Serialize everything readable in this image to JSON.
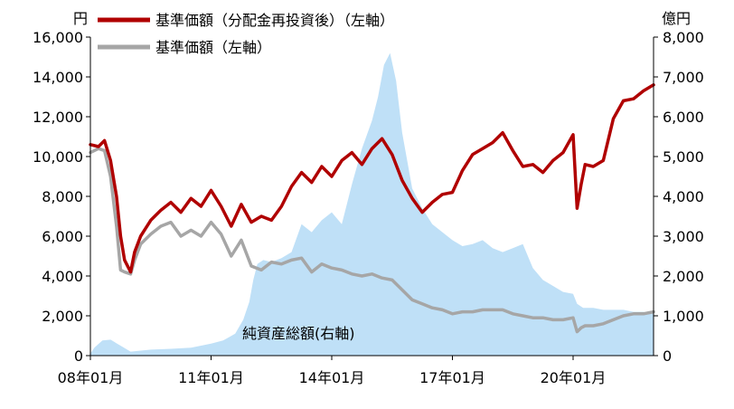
{
  "chart_data": {
    "type": "line",
    "left_axis": {
      "unit": "円",
      "range": [
        0,
        16000
      ],
      "ticks": [
        "0",
        "2,000",
        "4,000",
        "6,000",
        "8,000",
        "10,000",
        "12,000",
        "14,000",
        "16,000"
      ],
      "tick_values": [
        0,
        2000,
        4000,
        6000,
        8000,
        10000,
        12000,
        14000,
        16000
      ]
    },
    "right_axis": {
      "unit": "億円",
      "range": [
        0,
        8000
      ],
      "ticks": [
        "0",
        "1,000",
        "2,000",
        "3,000",
        "4,000",
        "5,000",
        "6,000",
        "7,000",
        "8,000"
      ],
      "tick_values": [
        0,
        1000,
        2000,
        3000,
        4000,
        5000,
        6000,
        7000,
        8000
      ]
    },
    "x_axis": {
      "range": [
        2008.0,
        2022.0
      ],
      "ticks": [
        "08年01月",
        "11年01月",
        "14年01月",
        "17年01月",
        "20年01月"
      ],
      "tick_values": [
        2008.0,
        2011.0,
        2014.0,
        2017.0,
        2020.0
      ]
    },
    "series": [
      {
        "name": "基準価額（分配金再投資後）（左軸）",
        "axis": "left",
        "style": "line",
        "color": "#b00000",
        "x": [
          2008.0,
          2008.2,
          2008.35,
          2008.5,
          2008.65,
          2008.75,
          2008.85,
          2009.0,
          2009.1,
          2009.25,
          2009.5,
          2009.75,
          2010.0,
          2010.25,
          2010.5,
          2010.75,
          2011.0,
          2011.25,
          2011.5,
          2011.75,
          2012.0,
          2012.25,
          2012.5,
          2012.75,
          2013.0,
          2013.25,
          2013.5,
          2013.75,
          2014.0,
          2014.25,
          2014.5,
          2014.75,
          2015.0,
          2015.25,
          2015.5,
          2015.75,
          2016.0,
          2016.25,
          2016.5,
          2016.75,
          2017.0,
          2017.25,
          2017.5,
          2017.75,
          2018.0,
          2018.25,
          2018.5,
          2018.75,
          2019.0,
          2019.25,
          2019.5,
          2019.75,
          2020.0,
          2020.1,
          2020.2,
          2020.3,
          2020.5,
          2020.75,
          2021.0,
          2021.25,
          2021.5,
          2021.75,
          2022.0
        ],
        "y": [
          10600,
          10500,
          10800,
          9800,
          8000,
          6000,
          4800,
          4200,
          5200,
          6000,
          6800,
          7300,
          7700,
          7200,
          7900,
          7500,
          8300,
          7500,
          6500,
          7600,
          6700,
          7000,
          6800,
          7500,
          8500,
          9200,
          8700,
          9500,
          9000,
          9800,
          10200,
          9600,
          10400,
          10900,
          10100,
          8800,
          7900,
          7200,
          7700,
          8100,
          8200,
          9300,
          10100,
          10400,
          10700,
          11200,
          10300,
          9500,
          9600,
          9200,
          9800,
          10200,
          11100,
          7400,
          8600,
          9600,
          9500,
          9800,
          11900,
          12800,
          12900,
          13300,
          13600
        ]
      },
      {
        "name": "基準価額（左軸）",
        "axis": "left",
        "style": "line",
        "color": "#a6a6a6",
        "x": [
          2008.0,
          2008.2,
          2008.35,
          2008.5,
          2008.65,
          2008.75,
          2008.85,
          2009.0,
          2009.1,
          2009.25,
          2009.5,
          2009.75,
          2010.0,
          2010.25,
          2010.5,
          2010.75,
          2011.0,
          2011.25,
          2011.5,
          2011.75,
          2012.0,
          2012.25,
          2012.5,
          2012.75,
          2013.0,
          2013.25,
          2013.5,
          2013.75,
          2014.0,
          2014.25,
          2014.5,
          2014.75,
          2015.0,
          2015.25,
          2015.5,
          2015.75,
          2016.0,
          2016.25,
          2016.5,
          2016.75,
          2017.0,
          2017.25,
          2017.5,
          2017.75,
          2018.0,
          2018.25,
          2018.5,
          2018.75,
          2019.0,
          2019.25,
          2019.5,
          2019.75,
          2020.0,
          2020.1,
          2020.2,
          2020.3,
          2020.5,
          2020.75,
          2021.0,
          2021.25,
          2021.5,
          2021.75,
          2022.0
        ],
        "y": [
          10200,
          10400,
          10300,
          9000,
          6500,
          4300,
          4200,
          4100,
          4800,
          5600,
          6100,
          6500,
          6700,
          6000,
          6300,
          6000,
          6700,
          6100,
          5000,
          5800,
          4500,
          4300,
          4700,
          4600,
          4800,
          4900,
          4200,
          4600,
          4400,
          4300,
          4100,
          4000,
          4100,
          3900,
          3800,
          3300,
          2800,
          2600,
          2400,
          2300,
          2100,
          2200,
          2200,
          2300,
          2300,
          2300,
          2100,
          2000,
          1900,
          1900,
          1800,
          1800,
          1900,
          1200,
          1400,
          1500,
          1500,
          1600,
          1800,
          2000,
          2100,
          2100,
          2200
        ]
      },
      {
        "name": "純資産総額(右軸)",
        "axis": "right",
        "style": "area",
        "color": "#bfe0f7",
        "x": [
          2008.0,
          2008.1,
          2008.3,
          2008.5,
          2008.7,
          2009.0,
          2009.5,
          2010.0,
          2010.5,
          2011.0,
          2011.3,
          2011.6,
          2011.8,
          2011.95,
          2012.05,
          2012.15,
          2012.3,
          2012.5,
          2012.75,
          2013.0,
          2013.25,
          2013.5,
          2013.75,
          2014.0,
          2014.25,
          2014.5,
          2014.75,
          2015.0,
          2015.15,
          2015.3,
          2015.45,
          2015.6,
          2015.75,
          2016.0,
          2016.25,
          2016.5,
          2016.75,
          2017.0,
          2017.25,
          2017.5,
          2017.75,
          2018.0,
          2018.25,
          2018.5,
          2018.75,
          2019.0,
          2019.25,
          2019.5,
          2019.75,
          2020.0,
          2020.1,
          2020.25,
          2020.5,
          2020.75,
          2021.0,
          2021.25,
          2021.5,
          2021.75,
          2022.0
        ],
        "y": [
          50,
          200,
          380,
          400,
          280,
          100,
          150,
          170,
          200,
          300,
          380,
          550,
          900,
          1350,
          1900,
          2300,
          2400,
          2350,
          2450,
          2600,
          3300,
          3100,
          3400,
          3600,
          3300,
          4300,
          5200,
          5900,
          6500,
          7300,
          7600,
          6900,
          5600,
          4200,
          3700,
          3300,
          3100,
          2900,
          2750,
          2800,
          2900,
          2700,
          2600,
          2700,
          2800,
          2200,
          1900,
          1750,
          1600,
          1550,
          1300,
          1200,
          1200,
          1150,
          1150,
          1150,
          1100,
          1100,
          1050
        ]
      }
    ],
    "legend": [
      "基準価額（分配金再投資後）（左軸）",
      "基準価額（左軸）"
    ],
    "annotations": [
      "純資産総額(右軸)"
    ]
  }
}
